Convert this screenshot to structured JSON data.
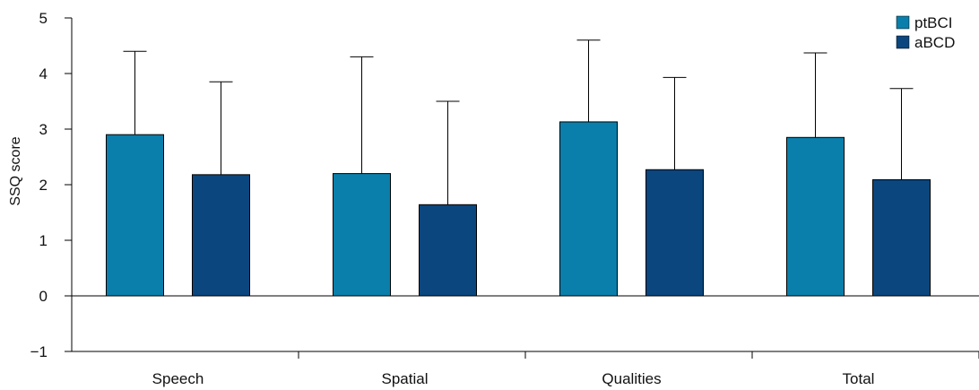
{
  "chart_data": {
    "type": "bar",
    "ylabel": "SSQ score",
    "xlabel": "",
    "ylim": [
      -1,
      5
    ],
    "yticks": [
      "−1",
      "0",
      "1",
      "2",
      "3",
      "4",
      "5"
    ],
    "categories": [
      "Speech",
      "Spatial",
      "Qualities",
      "Total"
    ],
    "series": [
      {
        "name": "ptBCI",
        "color": "#0a7fab",
        "values": [
          2.9,
          2.2,
          3.13,
          2.85
        ],
        "error_upper": [
          4.4,
          4.3,
          4.6,
          4.37
        ]
      },
      {
        "name": "aBCD",
        "color": "#0b467e",
        "values": [
          2.18,
          1.64,
          2.27,
          2.09
        ],
        "error_upper": [
          3.85,
          3.5,
          3.93,
          3.73
        ]
      }
    ],
    "legend_position": "top-right",
    "grid": false
  }
}
